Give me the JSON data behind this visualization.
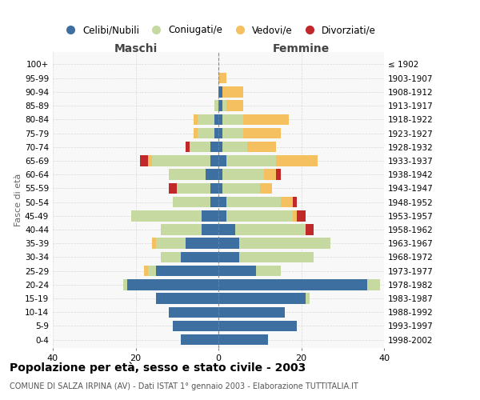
{
  "age_groups": [
    "0-4",
    "5-9",
    "10-14",
    "15-19",
    "20-24",
    "25-29",
    "30-34",
    "35-39",
    "40-44",
    "45-49",
    "50-54",
    "55-59",
    "60-64",
    "65-69",
    "70-74",
    "75-79",
    "80-84",
    "85-89",
    "90-94",
    "95-99",
    "100+"
  ],
  "birth_years": [
    "1998-2002",
    "1993-1997",
    "1988-1992",
    "1983-1987",
    "1978-1982",
    "1973-1977",
    "1968-1972",
    "1963-1967",
    "1958-1962",
    "1953-1957",
    "1948-1952",
    "1943-1947",
    "1938-1942",
    "1933-1937",
    "1928-1932",
    "1923-1927",
    "1918-1922",
    "1913-1917",
    "1908-1912",
    "1903-1907",
    "≤ 1902"
  ],
  "males": {
    "celibi": [
      9,
      11,
      12,
      15,
      22,
      15,
      9,
      8,
      4,
      4,
      2,
      2,
      3,
      2,
      2,
      1,
      1,
      0,
      0,
      0,
      0
    ],
    "coniugati": [
      0,
      0,
      0,
      0,
      1,
      2,
      5,
      7,
      10,
      17,
      9,
      8,
      9,
      14,
      5,
      4,
      4,
      1,
      0,
      0,
      0
    ],
    "vedovi": [
      0,
      0,
      0,
      0,
      0,
      1,
      0,
      1,
      0,
      0,
      0,
      0,
      0,
      1,
      0,
      1,
      1,
      0,
      0,
      0,
      0
    ],
    "divorziati": [
      0,
      0,
      0,
      0,
      0,
      0,
      0,
      0,
      0,
      0,
      0,
      2,
      0,
      2,
      1,
      0,
      0,
      0,
      0,
      0,
      0
    ]
  },
  "females": {
    "nubili": [
      12,
      19,
      16,
      21,
      36,
      9,
      5,
      5,
      4,
      2,
      2,
      1,
      1,
      2,
      1,
      1,
      1,
      1,
      1,
      0,
      0
    ],
    "coniugate": [
      0,
      0,
      0,
      1,
      3,
      6,
      18,
      22,
      17,
      16,
      13,
      9,
      10,
      12,
      6,
      5,
      5,
      1,
      0,
      0,
      0
    ],
    "vedove": [
      0,
      0,
      0,
      0,
      0,
      0,
      0,
      0,
      0,
      1,
      3,
      3,
      3,
      10,
      7,
      9,
      11,
      4,
      5,
      2,
      0
    ],
    "divorziate": [
      0,
      0,
      0,
      0,
      0,
      0,
      0,
      0,
      2,
      2,
      1,
      0,
      1,
      0,
      0,
      0,
      0,
      0,
      0,
      0,
      0
    ]
  },
  "colors": {
    "celibi_nubili": "#3d6fa0",
    "coniugati": "#c5d9a0",
    "vedovi": "#f5c060",
    "divorziati": "#c0282a"
  },
  "xlim": 40,
  "title": "Popolazione per età, sesso e stato civile - 2003",
  "subtitle": "COMUNE DI SALZA IRPINA (AV) - Dati ISTAT 1° gennaio 2003 - Elaborazione TUTTITALIA.IT",
  "ylabel_left": "Fasce di età",
  "xlabel_left": "Maschi",
  "xlabel_right": "Femmine"
}
